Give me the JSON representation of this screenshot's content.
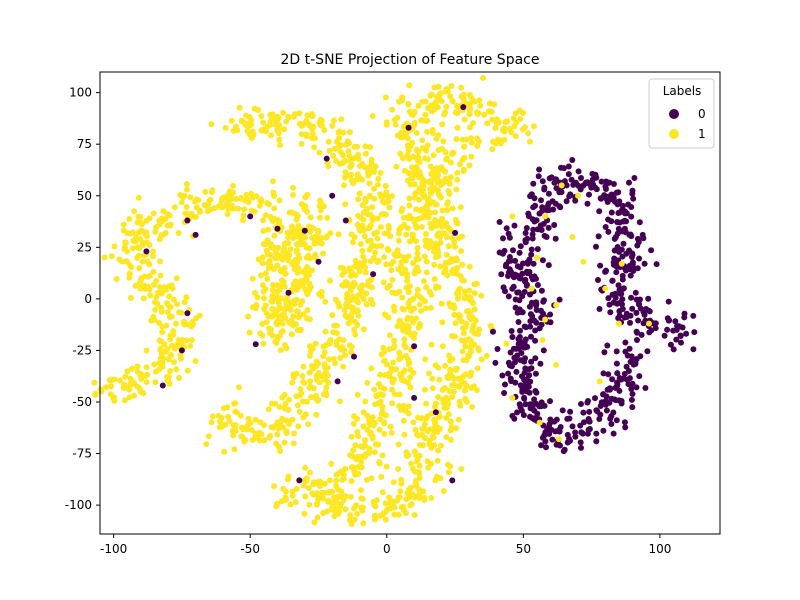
{
  "chart_data": {
    "type": "scatter",
    "title": "2D t-SNE Projection of Feature Space",
    "xlabel": "",
    "ylabel": "",
    "xlim": [
      -105,
      122
    ],
    "ylim": [
      -114,
      110
    ],
    "xticks": [
      -100,
      -50,
      0,
      50,
      100
    ],
    "xtick_labels": [
      "-100",
      "-50",
      "0",
      "50",
      "100"
    ],
    "yticks": [
      -100,
      -75,
      -50,
      -25,
      0,
      25,
      50,
      75,
      100
    ],
    "ytick_labels": [
      "-100",
      "-75",
      "-50",
      "-25",
      "0",
      "25",
      "50",
      "75",
      "100"
    ],
    "grid": false,
    "legend": {
      "title": "Labels",
      "placement": "top-right",
      "entries": [
        {
          "label": "0",
          "color": "#440154"
        },
        {
          "label": "1",
          "color": "#fde725"
        }
      ]
    },
    "series": [
      {
        "name": "0",
        "color": "#440154",
        "description_curve": [
          [
            56,
            38
          ],
          [
            50,
            30
          ],
          [
            47,
            15
          ],
          [
            52,
            5
          ],
          [
            54,
            -5
          ],
          [
            52,
            -15
          ],
          [
            49,
            -25
          ],
          [
            48,
            -35
          ],
          [
            50,
            -45
          ],
          [
            54,
            -55
          ],
          [
            60,
            -64
          ],
          [
            68,
            -66
          ],
          [
            77,
            -60
          ],
          [
            83,
            -50
          ],
          [
            86,
            -38
          ],
          [
            88,
            -25
          ]
        ],
        "description_curve_2": [
          [
            56,
            38
          ],
          [
            60,
            52
          ],
          [
            68,
            58
          ],
          [
            75,
            56
          ],
          [
            84,
            45
          ],
          [
            88,
            35
          ],
          [
            87,
            22
          ],
          [
            84,
            10
          ],
          [
            85,
            -2
          ],
          [
            92,
            -10
          ],
          [
            100,
            -14
          ],
          [
            110,
            -16
          ]
        ],
        "outliers": [
          [
            64,
            55
          ],
          [
            46,
            40
          ],
          [
            58,
            40
          ],
          [
            55,
            20
          ],
          [
            53,
            5
          ],
          [
            72,
            18
          ],
          [
            62,
            -3
          ],
          [
            57,
            -20
          ],
          [
            70,
            50
          ],
          [
            86,
            17
          ],
          [
            80,
            5
          ],
          [
            62,
            -32
          ],
          [
            78,
            -40
          ],
          [
            46,
            -48
          ],
          [
            63,
            -68
          ],
          [
            56,
            -60
          ],
          [
            96,
            -12
          ],
          [
            85,
            -12
          ],
          [
            68,
            30
          ],
          [
            58,
            -10
          ]
        ]
      },
      {
        "name": "1",
        "color": "#fde725",
        "description_curve": [
          [
            -105,
            -44
          ],
          [
            -95,
            -42
          ],
          [
            -85,
            -36
          ],
          [
            -78,
            -25
          ],
          [
            -75,
            -12
          ],
          [
            -80,
            0
          ],
          [
            -90,
            10
          ],
          [
            -92,
            25
          ],
          [
            -85,
            38
          ],
          [
            -72,
            47
          ],
          [
            -58,
            48
          ],
          [
            -45,
            44
          ],
          [
            -37,
            35
          ],
          [
            -38,
            20
          ],
          [
            -42,
            5
          ],
          [
            -45,
            -5
          ],
          [
            -40,
            -15
          ]
        ],
        "description_curve_2": [
          [
            -58,
            82
          ],
          [
            -45,
            87
          ],
          [
            -30,
            86
          ],
          [
            -18,
            78
          ],
          [
            -10,
            65
          ],
          [
            -6,
            45
          ],
          [
            -8,
            25
          ],
          [
            -12,
            5
          ],
          [
            -18,
            -20
          ],
          [
            -26,
            -40
          ],
          [
            -35,
            -55
          ],
          [
            -45,
            -67
          ],
          [
            -55,
            -65
          ],
          [
            -60,
            -55
          ]
        ],
        "description_curve_3": [
          [
            -28,
            50
          ],
          [
            -30,
            30
          ],
          [
            -32,
            10
          ],
          [
            -36,
            -8
          ],
          [
            -40,
            -22
          ]
        ],
        "description_curve_4": [
          [
            6,
            88
          ],
          [
            10,
            75
          ],
          [
            12,
            60
          ],
          [
            10,
            40
          ],
          [
            8,
            20
          ],
          [
            8,
            0
          ],
          [
            6,
            -20
          ],
          [
            2,
            -40
          ],
          [
            -2,
            -55
          ],
          [
            -6,
            -70
          ],
          [
            -10,
            -82
          ],
          [
            -25,
            -93
          ],
          [
            -38,
            -93
          ]
        ],
        "description_curve_5": [
          [
            8,
            93
          ],
          [
            18,
            97
          ],
          [
            26,
            98
          ],
          [
            35,
            90
          ],
          [
            44,
            82
          ],
          [
            50,
            77
          ]
        ],
        "description_curve_6": [
          [
            26,
            80
          ],
          [
            22,
            65
          ],
          [
            18,
            50
          ],
          [
            20,
            30
          ],
          [
            24,
            10
          ],
          [
            28,
            -5
          ],
          [
            30,
            -20
          ],
          [
            25,
            -40
          ],
          [
            18,
            -60
          ],
          [
            14,
            -75
          ],
          [
            10,
            -95
          ],
          [
            0,
            -102
          ],
          [
            -15,
            -101
          ],
          [
            -28,
            -96
          ]
        ],
        "outliers": [
          [
            -88,
            23
          ],
          [
            -73,
            -7
          ],
          [
            -70,
            31
          ],
          [
            -73,
            38
          ],
          [
            -75,
            -25
          ],
          [
            -50,
            40
          ],
          [
            -36,
            3
          ],
          [
            -30,
            33
          ],
          [
            -22,
            68
          ],
          [
            -20,
            50
          ],
          [
            -15,
            38
          ],
          [
            -12,
            -28
          ],
          [
            -18,
            -40
          ],
          [
            -25,
            18
          ],
          [
            8,
            83
          ],
          [
            28,
            93
          ],
          [
            25,
            32
          ],
          [
            10,
            -23
          ],
          [
            18,
            -55
          ],
          [
            10,
            -48
          ],
          [
            -40,
            34
          ],
          [
            -48,
            -22
          ],
          [
            -82,
            -42
          ],
          [
            -5,
            12
          ],
          [
            24,
            -88
          ],
          [
            -32,
            -88
          ]
        ]
      }
    ]
  }
}
